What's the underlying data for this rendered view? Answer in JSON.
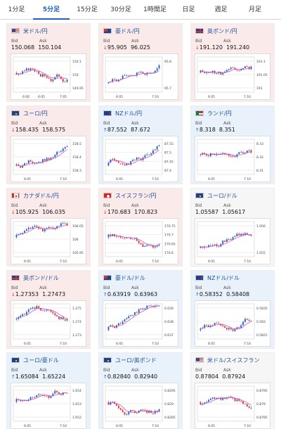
{
  "tabs": [
    {
      "label": "1分足",
      "active": false
    },
    {
      "label": "5分足",
      "active": true
    },
    {
      "label": "15分足",
      "active": false
    },
    {
      "label": "30分足",
      "active": false
    },
    {
      "label": "1時間足",
      "active": false
    },
    {
      "label": "日足",
      "active": false
    },
    {
      "label": "週足",
      "active": false
    },
    {
      "label": "月足",
      "active": false
    }
  ],
  "labels": {
    "bid": "Bid",
    "ask": "Ask"
  },
  "colors": {
    "up_candle": "#1f5fbf",
    "down_candle": "#d9363e",
    "ma_line": "#c946c9"
  },
  "cards": [
    {
      "pair": "米ドル/円",
      "flag": "us",
      "dir": "down",
      "arrow": "",
      "bid": "150.068",
      "ask": "150.104",
      "chart": {
        "y_ticks": [
          "150.1",
          "150",
          "149.95"
        ],
        "x_ticks": [
          "6:00",
          "6:05",
          "7:05"
        ],
        "ylim": [
          149.92,
          150.15
        ],
        "seed": 3
      }
    },
    {
      "pair": "豪ドル/円",
      "flag": "au",
      "dir": "down",
      "arrow": "↓",
      "bid": "95.905",
      "ask": "96.025",
      "chart": {
        "y_ticks": [
          "95.8",
          "95.7"
        ],
        "x_ticks": [
          "6:05",
          "7:10"
        ],
        "ylim": [
          95.65,
          95.95
        ],
        "seed": 7,
        "trend": 1
      }
    },
    {
      "pair": "英ポンド/円",
      "flag": "gb",
      "dir": "down",
      "arrow": "↓",
      "bid": "191.120",
      "ask": "191.240",
      "chart": {
        "y_ticks": [
          "191.1",
          "191.05",
          "191"
        ],
        "x_ticks": [
          "6:05",
          "7:10"
        ],
        "ylim": [
          190.98,
          191.16
        ],
        "seed": 11
      }
    },
    {
      "pair": "ユーロ/円",
      "flag": "eu",
      "dir": "down",
      "arrow": "↓",
      "bid": "158.435",
      "ask": "158.575",
      "chart": {
        "y_ticks": [
          "158.5",
          "158.4",
          "158.3"
        ],
        "x_ticks": [
          "6:05",
          "7:10"
        ],
        "ylim": [
          158.25,
          158.55
        ],
        "seed": 13,
        "trend": 1
      }
    },
    {
      "pair": "NZドル/円",
      "flag": "nz",
      "dir": "up",
      "arrow": "↑",
      "bid": "87.552",
      "ask": "87.672",
      "chart": {
        "y_ticks": [
          "87.55",
          "87.5",
          "87.45",
          "87.4"
        ],
        "x_ticks": [
          "6:05",
          "7:10"
        ],
        "ylim": [
          87.38,
          87.6
        ],
        "seed": 17,
        "trend": 1
      }
    },
    {
      "pair": "ランド/円",
      "flag": "za",
      "dir": "up",
      "arrow": "↑",
      "bid": "8.318",
      "ask": "8.351",
      "chart": {
        "y_ticks": [
          "8.33",
          "8.32",
          "8.31"
        ],
        "x_ticks": [
          "6:05",
          "7:10"
        ],
        "ylim": [
          8.305,
          8.335
        ],
        "seed": 19
      }
    },
    {
      "pair": "カナダドル/円",
      "flag": "ca",
      "dir": "down",
      "arrow": "↓",
      "bid": "105.925",
      "ask": "106.035",
      "chart": {
        "y_ticks": [
          "106.05",
          "106",
          "105.95"
        ],
        "x_ticks": [
          "6:05",
          "7:10"
        ],
        "ylim": [
          105.92,
          106.08
        ],
        "seed": 23
      }
    },
    {
      "pair": "スイスフラン/円",
      "flag": "ch",
      "dir": "down",
      "arrow": "↓",
      "bid": "170.683",
      "ask": "170.823",
      "chart": {
        "y_ticks": [
          "170.75",
          "170.7",
          "170.65",
          "170.6"
        ],
        "x_ticks": [
          "6:05",
          "7:10"
        ],
        "ylim": [
          170.58,
          170.78
        ],
        "seed": 29
      }
    },
    {
      "pair": "ユーロ/ドル",
      "flag": "eu",
      "dir": "flat",
      "arrow": "",
      "bid": "1.05587",
      "ask": "1.05617",
      "chart": {
        "y_ticks": [
          "1.056",
          "1.055"
        ],
        "x_ticks": [
          "6:05",
          "7:10"
        ],
        "ylim": [
          1.0545,
          1.0565
        ],
        "seed": 31,
        "trend": 1
      }
    },
    {
      "pair": "英ポンド/ドル",
      "flag": "gb",
      "dir": "down",
      "arrow": "↓",
      "bid": "1.27353",
      "ask": "1.27473",
      "chart": {
        "y_ticks": [
          "1.275",
          "1.274",
          "1.273"
        ],
        "x_ticks": [
          "6:05",
          "7:10"
        ],
        "ylim": [
          1.2725,
          1.2755
        ],
        "seed": 37
      }
    },
    {
      "pair": "豪ドル/ドル",
      "flag": "au",
      "dir": "up",
      "arrow": "↑",
      "bid": "0.63919",
      "ask": "0.63963",
      "chart": {
        "y_ticks": [
          "0.639",
          "0.638",
          "0.637"
        ],
        "x_ticks": [
          "6:05",
          "7:10"
        ],
        "ylim": [
          0.6365,
          0.6395
        ],
        "seed": 41,
        "trend": 1
      }
    },
    {
      "pair": "NZドル/ドル",
      "flag": "nz",
      "dir": "up",
      "arrow": "↑",
      "bid": "0.58352",
      "ask": "0.58408",
      "chart": {
        "y_ticks": [
          "0.5835",
          "0.583",
          "0.5825"
        ],
        "x_ticks": [
          "6:05",
          "7:10"
        ],
        "ylim": [
          0.5822,
          0.5838
        ],
        "seed": 43,
        "trend": 1
      }
    },
    {
      "pair": "ユーロ/豪ドル",
      "flag": "eu",
      "dir": "up",
      "arrow": "↑",
      "bid": "1.65084",
      "ask": "1.65224",
      "chart": {
        "y_ticks": [
          "1.654",
          "1.653",
          "1.652"
        ],
        "x_ticks": [
          "6:05",
          "7:10"
        ],
        "ylim": [
          1.6505,
          1.6545
        ],
        "seed": 47
      }
    },
    {
      "pair": "ユーロ/英ポンド",
      "flag": "eu",
      "dir": "up",
      "arrow": "↑",
      "bid": "0.82840",
      "ask": "0.82940",
      "chart": {
        "y_ticks": [
          "0.8295",
          "0.829",
          "0.8285"
        ],
        "x_ticks": [
          "6:05",
          "7:10"
        ],
        "ylim": [
          0.828,
          0.83
        ],
        "seed": 53
      }
    },
    {
      "pair": "米ドル/スイスフラン",
      "flag": "us",
      "dir": "flat",
      "arrow": "",
      "bid": "0.87804",
      "ask": "0.87924",
      "chart": {
        "y_ticks": [
          "0.8795",
          "0.879",
          "0.8785"
        ],
        "x_ticks": [
          "6:05",
          "7:10"
        ],
        "ylim": [
          0.878,
          0.8798
        ],
        "seed": 59
      }
    }
  ]
}
